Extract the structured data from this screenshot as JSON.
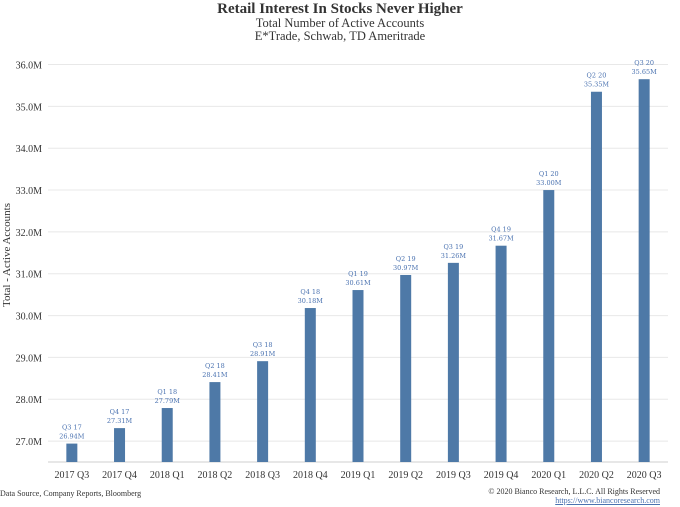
{
  "header": {
    "title": "Retail Interest In Stocks Never Higher",
    "subtitle1": "Total Number of Active Accounts",
    "subtitle2": "E*Trade, Schwab, TD Ameritrade"
  },
  "footer": {
    "source": "Data Source, Company Reports, Bloomberg",
    "copyright": "© 2020 Bianco Research, L.L.C. All Rights Reserved",
    "url": "https://www.biancoresearch.com"
  },
  "chart_data": {
    "type": "bar",
    "title": "Retail Interest In Stocks Never Higher",
    "ylabel": "Total - Active Accounts",
    "xlabel": "",
    "ylim": [
      26.5,
      36.3
    ],
    "yticks": [
      27.0,
      28.0,
      29.0,
      30.0,
      31.0,
      32.0,
      33.0,
      34.0,
      35.0,
      36.0
    ],
    "ytick_labels": [
      "27.0M",
      "28.0M",
      "29.0M",
      "30.0M",
      "31.0M",
      "32.0M",
      "33.0M",
      "34.0M",
      "35.0M",
      "36.0M"
    ],
    "categories": [
      "2017 Q3",
      "2017 Q4",
      "2018 Q1",
      "2018 Q2",
      "2018 Q3",
      "2018 Q4",
      "2019 Q1",
      "2019 Q2",
      "2019 Q3",
      "2019 Q4",
      "2020 Q1",
      "2020 Q2",
      "2020 Q3"
    ],
    "values": [
      26.94,
      27.31,
      27.79,
      28.41,
      28.91,
      30.18,
      30.61,
      30.97,
      31.26,
      31.67,
      33.0,
      35.35,
      35.65
    ],
    "label_quarters": [
      "Q3 17",
      "Q4 17",
      "Q1 18",
      "Q2 18",
      "Q3 18",
      "Q4 18",
      "Q1 19",
      "Q2 19",
      "Q3 19",
      "Q4 19",
      "Q1 20",
      "Q2 20",
      "Q3 20"
    ],
    "label_values": [
      "26.94M",
      "27.31M",
      "27.79M",
      "28.41M",
      "28.91M",
      "30.18M",
      "30.61M",
      "30.97M",
      "31.26M",
      "31.67M",
      "33.00M",
      "35.35M",
      "35.65M"
    ],
    "grid": true,
    "colors": {
      "bar": "#4e79a7",
      "label": "#4a72b0",
      "grid": "#e8e8e8"
    }
  }
}
